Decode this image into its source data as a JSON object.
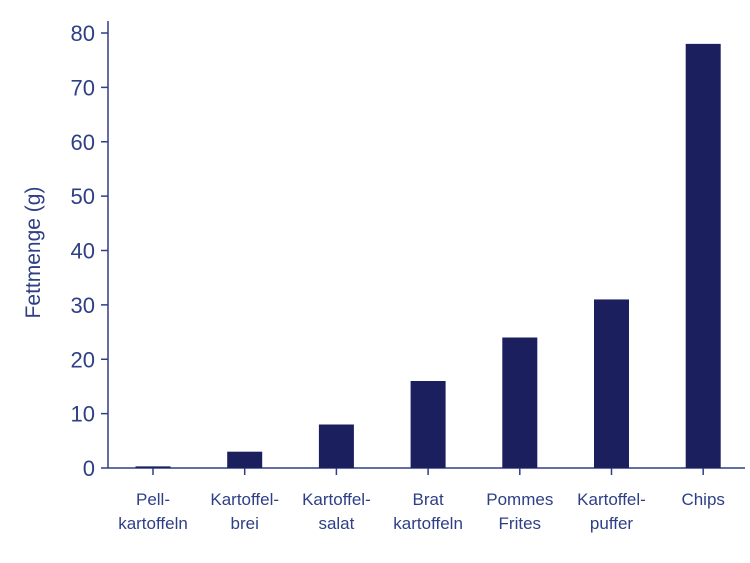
{
  "chart_data": {
    "type": "bar",
    "categories": [
      [
        "Pell-",
        "kartoffeln"
      ],
      [
        "Kartoffel-",
        "brei"
      ],
      [
        "Kartoffel-",
        "salat"
      ],
      [
        "Brat",
        "kartoffeln"
      ],
      [
        "Pommes",
        "Frites"
      ],
      [
        "Kartoffel-",
        "puffer"
      ],
      [
        "Chips"
      ]
    ],
    "values": [
      0.3,
      3,
      8,
      16,
      24,
      31,
      78
    ],
    "ylabel": "Fettmenge (g)",
    "xlabel": "",
    "title": "",
    "ylim": [
      0,
      80
    ],
    "yticks": [
      0,
      10,
      20,
      30,
      40,
      50,
      60,
      70,
      80
    ],
    "grid": false,
    "legend": "none",
    "colors": {
      "bar": "#1b1f5e",
      "axis": "#2e3f86",
      "text": "#2e3f86"
    }
  }
}
